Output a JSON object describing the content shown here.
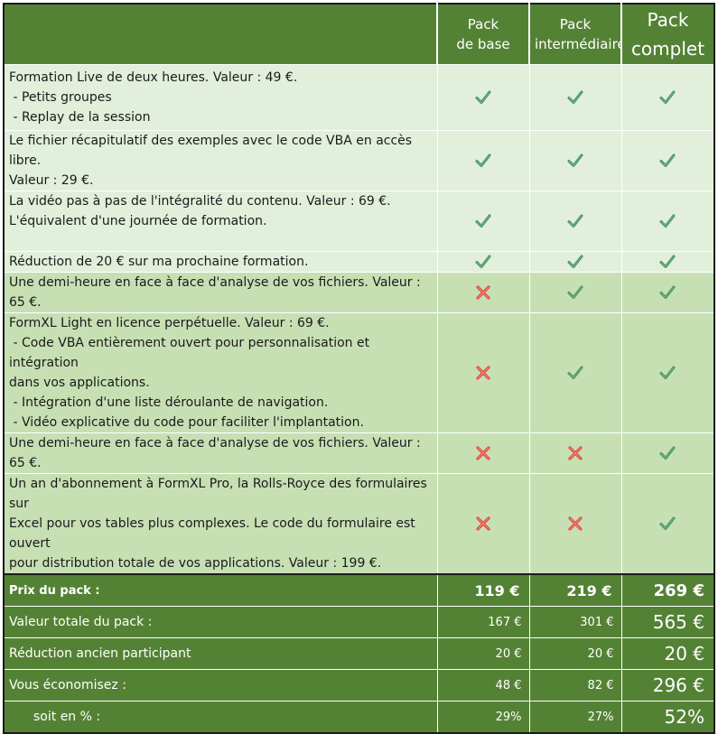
{
  "header": {
    "pack1": [
      "Pack",
      "de base"
    ],
    "pack2": [
      "Pack",
      "intermédiaire"
    ],
    "pack3": [
      "Pack",
      "complet"
    ]
  },
  "features": [
    {
      "lines": [
        "Formation Live de deux heures. Valeur : 49 €.",
        " - Petits groupes",
        " - Replay de la session"
      ],
      "status": [
        "check",
        "check",
        "check"
      ],
      "shade": "light"
    },
    {
      "lines": [
        "Le fichier récapitulatif des exemples avec le code VBA en accès libre.",
        "Valeur : 29 €."
      ],
      "status": [
        "check",
        "check",
        "check"
      ],
      "shade": "light"
    },
    {
      "lines": [
        "La vidéo pas à pas de l'intégralité du contenu. Valeur : 69 €.",
        "L'équivalent d'une journée de formation.",
        ""
      ],
      "status": [
        "check",
        "check",
        "check"
      ],
      "shade": "light"
    },
    {
      "lines": [
        "Réduction de 20 € sur ma prochaine formation."
      ],
      "status": [
        "check",
        "check",
        "check"
      ],
      "shade": "light"
    },
    {
      "lines": [
        "Une demi-heure en face à face d'analyse de vos fichiers. Valeur : 65 €."
      ],
      "status": [
        "cross",
        "check",
        "check"
      ],
      "shade": "mid"
    },
    {
      "lines": [
        "FormXL Light en licence perpétuelle. Valeur : 69 €.",
        " - Code VBA entièrement ouvert pour personnalisation et intégration",
        "dans vos applications.",
        " - Intégration d'une liste déroulante de navigation.",
        " - Vidéo explicative du code pour faciliter l'implantation."
      ],
      "status": [
        "cross",
        "check",
        "check"
      ],
      "shade": "mid"
    },
    {
      "lines": [
        "Une demi-heure en face à face d'analyse de vos fichiers. Valeur : 65 €."
      ],
      "status": [
        "cross",
        "cross",
        "check"
      ],
      "shade": "mid"
    },
    {
      "lines": [
        "Un an d'abonnement à FormXL Pro, la Rolls-Royce des formulaires sur",
        "Excel pour vos tables plus complexes. Le code du formulaire est ouvert",
        "pour distribution totale de vos applications. Valeur : 199 €."
      ],
      "status": [
        "cross",
        "cross",
        "check"
      ],
      "shade": "mid"
    }
  ],
  "price": {
    "label": "Prix du pack :",
    "values": [
      "119 €",
      "219 €",
      "269 €"
    ]
  },
  "summary": [
    {
      "label": "Valeur totale du pack :",
      "values": [
        "167 €",
        "301 €",
        "565 €"
      ]
    },
    {
      "label": "Réduction ancien participant",
      "values": [
        "20 €",
        "20 €",
        "20 €"
      ]
    },
    {
      "label": "Vous économisez :",
      "values": [
        "48 €",
        "82 €",
        "296 €"
      ]
    },
    {
      "label": "soit en % :",
      "values": [
        "29%",
        "27%",
        "52%"
      ]
    }
  ],
  "icons": {
    "check": "check-icon",
    "cross": "cross-icon"
  },
  "colors": {
    "header_green": "#548235",
    "light_row": "#e2efda",
    "mid_row": "#c6e0b4",
    "check": "#3f8f5f",
    "cross": "#e0473a"
  }
}
